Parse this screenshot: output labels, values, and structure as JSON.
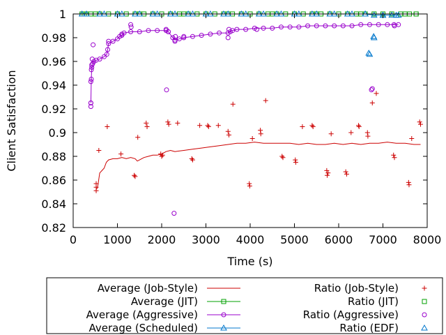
{
  "chart_data": {
    "type": "scatter",
    "xlabel": "Time (s)",
    "ylabel": "Client Satisfaction",
    "xlim": [
      0,
      8000
    ],
    "ylim": [
      0.82,
      1.0
    ],
    "x_ticks": [
      "0",
      "1000",
      "2000",
      "3000",
      "4000",
      "5000",
      "6000",
      "7000",
      "8000"
    ],
    "y_ticks": [
      "0.82",
      "0.84",
      "0.86",
      "0.88",
      "0.9",
      "0.92",
      "0.94",
      "0.96",
      "0.98",
      "1"
    ],
    "grid": false,
    "legend_position": "below plot, boxed, two columns",
    "series": [
      {
        "name": "Average (Job-Style)",
        "kind": "line",
        "color": "#cc0000",
        "marker": "none",
        "x": [
          520,
          540,
          560,
          600,
          650,
          700,
          750,
          800,
          900,
          1000,
          1100,
          1200,
          1300,
          1400,
          1450,
          1500,
          1600,
          1700,
          1800,
          1900,
          2000,
          2100,
          2200,
          2300,
          2500,
          2700,
          2900,
          3100,
          3300,
          3500,
          3700,
          3900,
          4100,
          4300,
          4500,
          4700,
          4900,
          5100,
          5300,
          5500,
          5700,
          5900,
          6100,
          6300,
          6500,
          6700,
          6900,
          7100,
          7300,
          7500,
          7700,
          7850
        ],
        "y": [
          0.852,
          0.853,
          0.856,
          0.866,
          0.868,
          0.87,
          0.875,
          0.877,
          0.878,
          0.878,
          0.879,
          0.878,
          0.879,
          0.878,
          0.876,
          0.877,
          0.879,
          0.88,
          0.881,
          0.881,
          0.882,
          0.884,
          0.885,
          0.884,
          0.885,
          0.886,
          0.887,
          0.888,
          0.889,
          0.89,
          0.891,
          0.891,
          0.892,
          0.891,
          0.891,
          0.891,
          0.891,
          0.89,
          0.891,
          0.89,
          0.89,
          0.891,
          0.89,
          0.891,
          0.89,
          0.891,
          0.891,
          0.892,
          0.891,
          0.891,
          0.89,
          0.89
        ]
      },
      {
        "name": "Ratio (Job-Style)",
        "kind": "points",
        "color": "#cc0000",
        "marker": "plus",
        "x": [
          520,
          520,
          520,
          580,
          770,
          1080,
          1380,
          1400,
          1460,
          1650,
          1670,
          1980,
          2000,
          2020,
          2140,
          2160,
          2360,
          2680,
          2700,
          2860,
          3040,
          3060,
          3280,
          3500,
          3520,
          3610,
          3980,
          3990,
          4050,
          4230,
          4240,
          4350,
          4720,
          4740,
          5020,
          5030,
          5180,
          5400,
          5420,
          5730,
          5740,
          5760,
          5830,
          6160,
          6180,
          6280,
          6450,
          6460,
          6650,
          6660,
          6760,
          6850,
          7240,
          7260,
          7580,
          7590,
          7650,
          7830,
          7850
        ],
        "y": [
          0.851,
          0.854,
          0.857,
          0.885,
          0.905,
          0.882,
          0.864,
          0.863,
          0.896,
          0.908,
          0.905,
          0.882,
          0.88,
          0.881,
          0.909,
          0.907,
          0.908,
          0.878,
          0.877,
          0.906,
          0.906,
          0.905,
          0.906,
          0.901,
          0.898,
          0.924,
          0.857,
          0.855,
          0.895,
          0.902,
          0.899,
          0.927,
          0.88,
          0.879,
          0.877,
          0.875,
          0.905,
          0.906,
          0.905,
          0.868,
          0.864,
          0.866,
          0.899,
          0.867,
          0.865,
          0.9,
          0.906,
          0.905,
          0.9,
          0.897,
          0.925,
          0.933,
          0.881,
          0.879,
          0.858,
          0.856,
          0.895,
          0.909,
          0.907
        ]
      },
      {
        "name": "Average (JIT)",
        "kind": "line",
        "color": "#00a000",
        "marker": "square",
        "x": [
          200,
          300,
          400,
          600,
          800,
          1000,
          1200,
          1400,
          1600,
          1800,
          2000,
          2200,
          2400,
          2600,
          2800,
          3000,
          3200,
          3400,
          3600,
          3800,
          4000,
          4200,
          4400,
          4600,
          4800,
          5000,
          5200,
          5400,
          5600,
          5800,
          6000,
          6200,
          6400,
          6600,
          6800,
          7000,
          7200,
          7400,
          7600,
          7750
        ],
        "y": [
          1,
          1,
          1,
          1,
          1,
          1,
          1,
          1,
          1,
          1,
          1,
          1,
          1,
          1,
          1,
          1,
          1,
          1,
          1,
          1,
          1,
          1,
          1,
          1,
          1,
          1,
          1,
          1,
          1,
          1,
          1,
          1,
          1,
          1,
          1,
          1,
          1,
          1,
          1,
          1
        ]
      },
      {
        "name": "Ratio (JIT)",
        "kind": "points",
        "color": "#00a000",
        "marker": "square-open",
        "x": [
          250,
          500,
          1000,
          1500,
          2000,
          2500,
          3000,
          3500,
          4000,
          4500,
          5000,
          5500,
          6000,
          6500,
          7000,
          7500,
          7750
        ],
        "y": [
          1,
          1,
          1,
          1,
          1,
          1,
          1,
          1,
          1,
          1,
          1,
          1,
          1,
          1,
          1,
          1,
          1
        ]
      },
      {
        "name": "Average (Aggressive)",
        "kind": "line",
        "color": "#9900cc",
        "marker": "circle",
        "x": [
          400,
          410,
          420,
          440,
          470,
          520,
          600,
          700,
          760,
          780,
          800,
          900,
          1000,
          1050,
          1100,
          1150,
          1300,
          1500,
          1700,
          1900,
          2100,
          2150,
          2250,
          2300,
          2400,
          2500,
          2700,
          2900,
          3100,
          3300,
          3500,
          3550,
          3600,
          3700,
          3900,
          4100,
          4300,
          4500,
          4700,
          4900,
          5100,
          5300,
          5500,
          5700,
          5900,
          6100,
          6300,
          6500,
          6700,
          6900,
          7100,
          7350
        ],
        "y": [
          0.925,
          0.945,
          0.955,
          0.958,
          0.96,
          0.961,
          0.962,
          0.964,
          0.966,
          0.97,
          0.975,
          0.977,
          0.979,
          0.981,
          0.982,
          0.984,
          0.985,
          0.985,
          0.986,
          0.986,
          0.986,
          0.985,
          0.98,
          0.978,
          0.979,
          0.98,
          0.981,
          0.982,
          0.983,
          0.984,
          0.984,
          0.985,
          0.986,
          0.987,
          0.987,
          0.988,
          0.988,
          0.988,
          0.989,
          0.989,
          0.989,
          0.99,
          0.99,
          0.99,
          0.99,
          0.99,
          0.99,
          0.991,
          0.991,
          0.991,
          0.991,
          0.991
        ]
      },
      {
        "name": "Ratio (Aggressive)",
        "kind": "points",
        "color": "#9900cc",
        "marker": "circle-open",
        "x": [
          400,
          400,
          400,
          410,
          420,
          430,
          450,
          800,
          1100,
          1300,
          1310,
          2100,
          2110,
          2150,
          2280,
          2300,
          2310,
          2500,
          3500,
          3520,
          4150,
          6740,
          6760,
          7250,
          7260
        ],
        "y": [
          0.922,
          0.925,
          0.943,
          0.953,
          0.957,
          0.962,
          0.974,
          0.977,
          0.983,
          0.991,
          0.989,
          0.987,
          0.936,
          0.985,
          0.832,
          0.977,
          0.981,
          0.981,
          0.98,
          0.987,
          0.987,
          0.936,
          0.937,
          0.991,
          0.99
        ]
      },
      {
        "name": "Average (Scheduled)",
        "kind": "line",
        "color": "#0077cc",
        "marker": "triangle",
        "x": [
          200,
          600,
          1000,
          1400,
          1800,
          2200,
          2600,
          3000,
          3400,
          3800,
          4200,
          4600,
          5000,
          5400,
          5800,
          6200,
          6600,
          6800,
          7000,
          7200,
          7350
        ],
        "y": [
          1,
          1,
          1,
          1,
          1,
          1,
          1,
          1,
          1,
          1,
          1,
          1,
          1,
          1,
          1,
          1,
          1,
          0.999,
          0.999,
          0.999,
          0.999
        ]
      },
      {
        "name": "Ratio (EDF)",
        "kind": "points",
        "color": "#0077cc",
        "marker": "triangle-open",
        "x": [
          300,
          700,
          1100,
          1500,
          1900,
          2300,
          2700,
          3100,
          3500,
          3900,
          4300,
          4700,
          5100,
          5500,
          5900,
          6300,
          6600,
          6680,
          6700,
          6790,
          6800,
          7000,
          7300
        ],
        "y": [
          1,
          1,
          1,
          1,
          1,
          1,
          1,
          1,
          1,
          1,
          1,
          1,
          1,
          1,
          1,
          1,
          1,
          0.967,
          0.966,
          0.981,
          0.98,
          0.999,
          0.999
        ]
      }
    ]
  }
}
